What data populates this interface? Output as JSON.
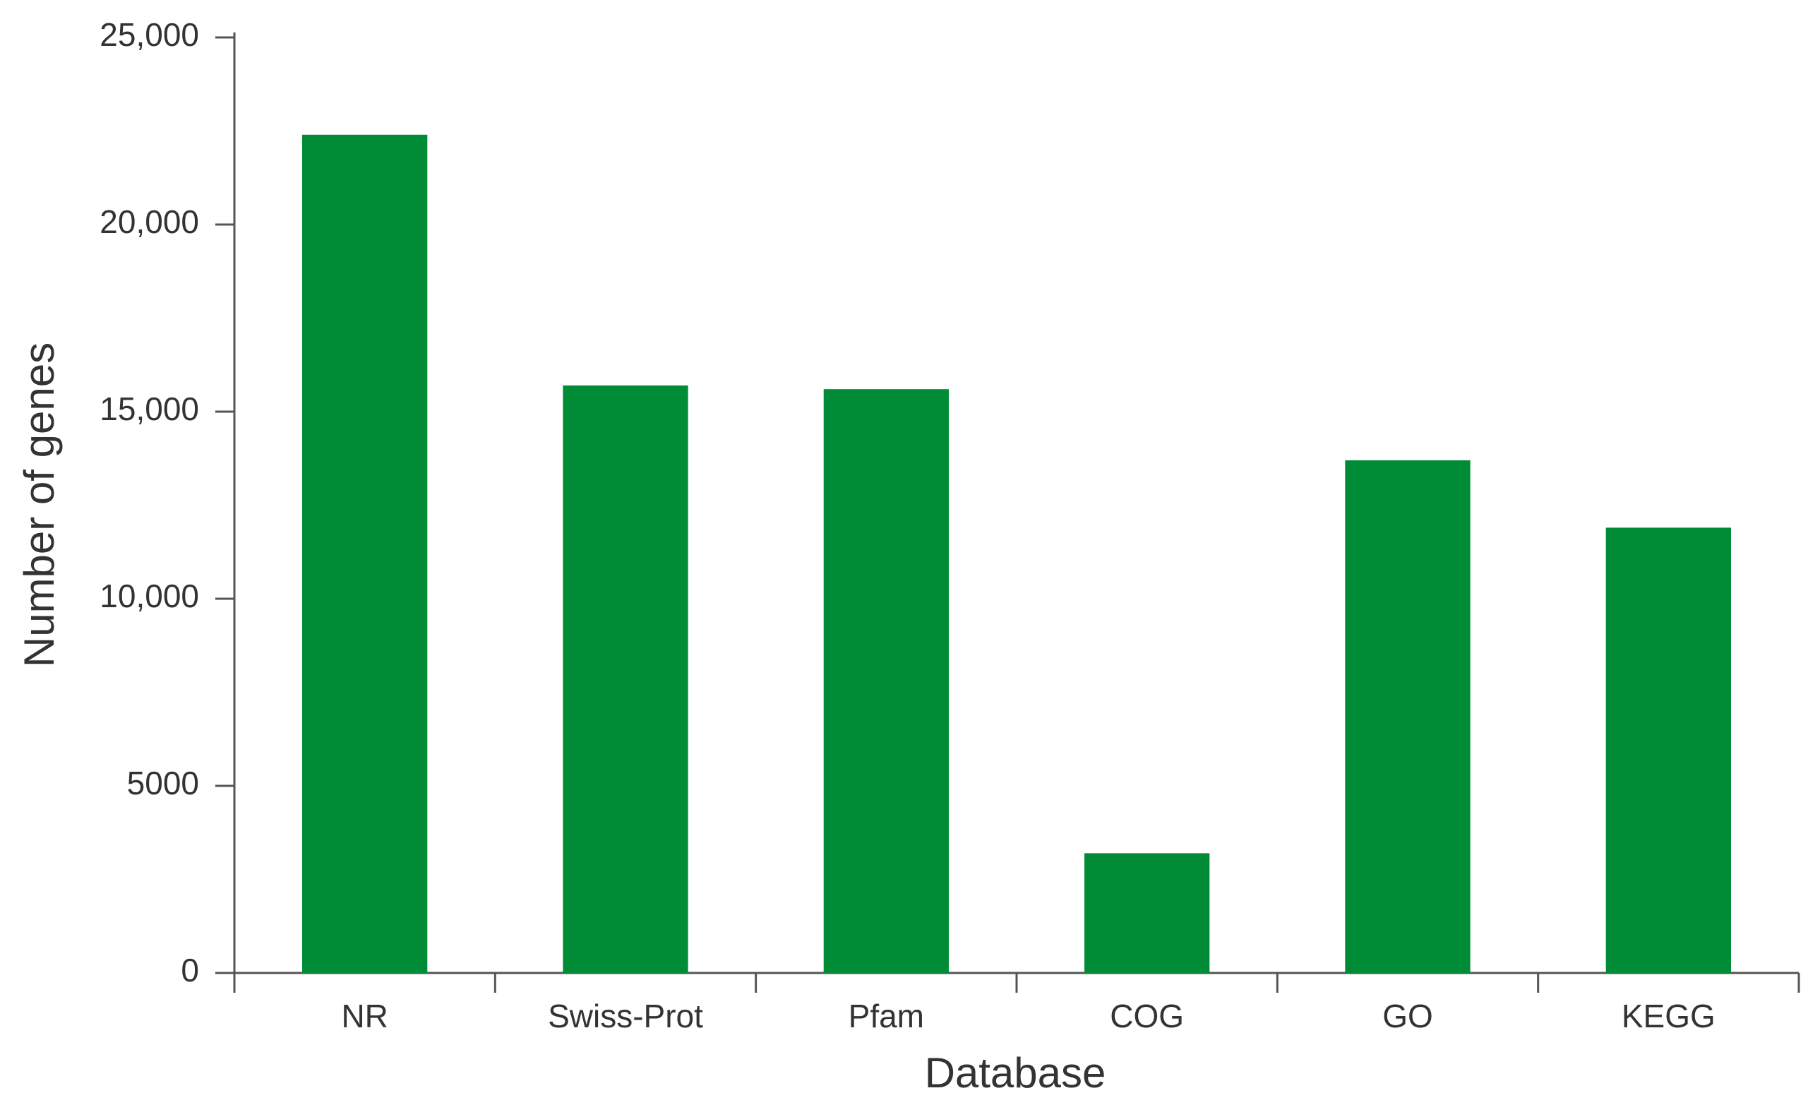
{
  "chart_data": {
    "type": "bar",
    "categories": [
      "NR",
      "Swiss-Prot",
      "Pfam",
      "COG",
      "GO",
      "KEGG"
    ],
    "values": [
      22400,
      15700,
      15600,
      3200,
      13700,
      11900
    ],
    "color": "#008c36",
    "x_label": "Database",
    "y_label": "Number of genes",
    "ylim": [
      0,
      25000
    ],
    "yticks": [
      0,
      5000,
      {
        "value": 10000,
        "label": "10,000"
      },
      {
        "value": 15000,
        "label": "15,000"
      },
      {
        "value": 20000,
        "label": "20,000"
      },
      {
        "value": 25000,
        "label": "25,000"
      }
    ],
    "grid": false
  }
}
